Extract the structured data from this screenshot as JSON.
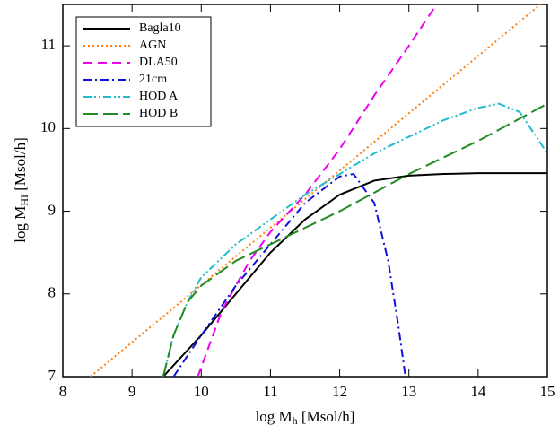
{
  "chart_data": {
    "type": "line",
    "xlabel": {
      "main": "log M",
      "sub": "h",
      "rest": " [Msol/h]"
    },
    "ylabel": {
      "main": "log M",
      "sub": "HI",
      "rest": " [Msol/h]"
    },
    "xlim": [
      8,
      15
    ],
    "ylim": [
      7,
      11.5
    ],
    "xticks": [
      8,
      9,
      10,
      11,
      12,
      13,
      14,
      15
    ],
    "yticks": [
      7,
      8,
      9,
      10,
      11
    ],
    "legend": "upper-left",
    "series": [
      {
        "name": "Bagla10",
        "color": "#000000",
        "style": "solid",
        "x": [
          9.45,
          10,
          10.5,
          11,
          11.5,
          12,
          12.5,
          13,
          13.5,
          14,
          15
        ],
        "values": [
          7.0,
          7.5,
          8.0,
          8.5,
          8.9,
          9.2,
          9.37,
          9.43,
          9.45,
          9.46,
          9.46
        ]
      },
      {
        "name": "AGN",
        "color": "#ff7f0e",
        "style": "dotted",
        "x": [
          8.4,
          14.9
        ],
        "values": [
          7.0,
          11.5
        ]
      },
      {
        "name": "DLA50",
        "color": "#ee00ee",
        "style": "dashed",
        "x": [
          9.95,
          10.3,
          10.7,
          11,
          11.5,
          12,
          12.5,
          13,
          13.4
        ],
        "values": [
          7.0,
          7.8,
          8.4,
          8.75,
          9.2,
          9.75,
          10.4,
          11.0,
          11.5
        ]
      },
      {
        "name": "21cm",
        "color": "#1010dd",
        "style": "dashdot",
        "x": [
          9.6,
          10,
          10.5,
          11,
          11.5,
          12,
          12.2,
          12.5,
          12.7,
          12.85,
          12.95
        ],
        "values": [
          7.0,
          7.5,
          8.1,
          8.6,
          9.1,
          9.42,
          9.45,
          9.1,
          8.4,
          7.6,
          7.0
        ]
      },
      {
        "name": "HOD A",
        "color": "#22bbcc",
        "style": "dashdotdot",
        "x": [
          9.45,
          9.6,
          9.8,
          10,
          10.5,
          11,
          11.5,
          12,
          12.5,
          13,
          13.5,
          14,
          14.3,
          14.6,
          14.8,
          15
        ],
        "values": [
          7.0,
          7.5,
          7.9,
          8.2,
          8.6,
          8.9,
          9.2,
          9.45,
          9.7,
          9.9,
          10.1,
          10.25,
          10.3,
          10.2,
          9.95,
          9.7
        ]
      },
      {
        "name": "HOD B",
        "color": "#228b22",
        "style": "longdash",
        "x": [
          9.45,
          9.6,
          9.8,
          10,
          10.5,
          11,
          11.5,
          12,
          13,
          14,
          15
        ],
        "values": [
          7.0,
          7.5,
          7.9,
          8.1,
          8.4,
          8.6,
          8.8,
          9.0,
          9.45,
          9.85,
          10.3
        ]
      }
    ]
  }
}
